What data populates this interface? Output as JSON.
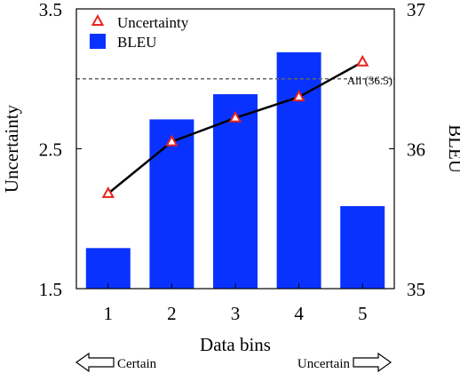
{
  "chart_data": {
    "type": "bar",
    "xlabel": "Data bins",
    "categories": [
      "1",
      "2",
      "3",
      "4",
      "5"
    ],
    "left_axis": {
      "label": "Uncertainty",
      "range": [
        1.5,
        3.5
      ],
      "ticks": [
        "1.5",
        "2.5",
        "3.5"
      ],
      "tick_values": [
        1.5,
        2.5,
        3.5
      ]
    },
    "right_axis": {
      "label": "BLEU",
      "range": [
        35,
        37
      ],
      "ticks": [
        "35",
        "36",
        "37"
      ],
      "tick_values": [
        35,
        36,
        37
      ]
    },
    "series": [
      {
        "name": "BLEU",
        "type": "bar",
        "axis": "right",
        "color": "#0a32ff",
        "values": [
          35.29,
          36.21,
          36.39,
          36.69,
          35.59
        ]
      },
      {
        "name": "Uncertainty",
        "type": "line",
        "axis": "left",
        "color": "#000000",
        "marker": "triangle",
        "marker_color": "#e8231e",
        "values": [
          2.18,
          2.55,
          2.72,
          2.87,
          3.12
        ]
      }
    ],
    "reference_line": {
      "label": "All (36.5)",
      "axis": "right",
      "value": 36.5,
      "style": "dashed",
      "color": "#666666"
    },
    "legend": {
      "position": "top-left",
      "items": [
        "Uncertainty",
        "BLEU"
      ]
    },
    "grid": false,
    "arrow_labels": {
      "left": "Certain",
      "right": "Uncertain"
    }
  }
}
